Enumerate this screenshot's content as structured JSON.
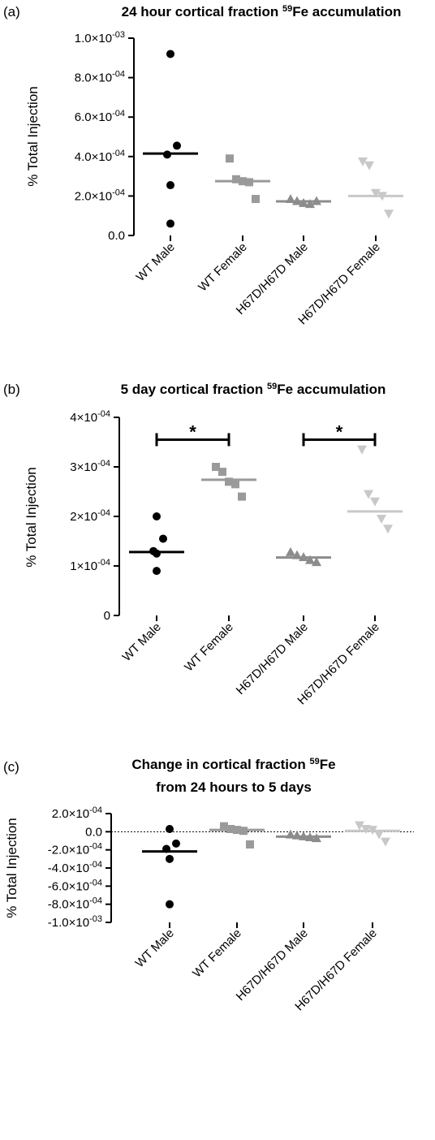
{
  "figure": {
    "panels": [
      {
        "label": "(a)",
        "title_lines": [
          {
            "text": "24 hour cortical fraction ",
            "sup": "59",
            "rest": "Fe accumulation"
          }
        ]
      },
      {
        "label": "(b)",
        "title_lines": [
          {
            "text": "5 day cortical fraction ",
            "sup": "59",
            "rest": "Fe accumulation"
          }
        ]
      },
      {
        "label": "(c)",
        "title_lines": [
          {
            "text": "Change in cortical fraction ",
            "sup": "59",
            "rest": "Fe"
          },
          {
            "text": "from 24 hours to 5 days",
            "sup": "",
            "rest": ""
          }
        ]
      }
    ]
  },
  "colors": {
    "wt_male": "#000000",
    "wt_female": "#9a9a9a",
    "h67d_male": "#8c8c8c",
    "h67d_female": "#c8c8c8"
  },
  "chart_data": [
    {
      "type": "scatter",
      "ylabel": "% Total Injection",
      "ylim": [
        0,
        0.001
      ],
      "yticks": [
        {
          "value": 0.001,
          "label": "1.0×10",
          "exp": "-03"
        },
        {
          "value": 0.0008,
          "label": "8.0×10",
          "exp": "-04"
        },
        {
          "value": 0.0006,
          "label": "6.0×10",
          "exp": "-04"
        },
        {
          "value": 0.0004,
          "label": "4.0×10",
          "exp": "-04"
        },
        {
          "value": 0.0002,
          "label": "2.0×10",
          "exp": "-04"
        },
        {
          "value": 0,
          "label": "0.0",
          "exp": ""
        }
      ],
      "categories": [
        "WT Male",
        "WT Female",
        "H67D/H67D Male",
        "H67D/H67D Female"
      ],
      "series": [
        {
          "marker": "circle",
          "color": "#000000",
          "points": [
            0.00092,
            0.000455,
            0.00041,
            0.000255,
            6e-05
          ],
          "mean": 0.000415
        },
        {
          "marker": "square",
          "color": "#9a9a9a",
          "points": [
            0.00039,
            0.000285,
            0.000275,
            0.00027,
            0.000185
          ],
          "mean": 0.000275
        },
        {
          "marker": "triangle-up",
          "color": "#8c8c8c",
          "points": [
            0.000185,
            0.000175,
            0.000165,
            0.00016,
            0.000175
          ],
          "mean": 0.000173
        },
        {
          "marker": "triangle-down",
          "color": "#c8c8c8",
          "points": [
            0.000375,
            0.000355,
            0.000215,
            0.0002,
            0.00011
          ],
          "mean": 0.0002
        }
      ],
      "significance": []
    },
    {
      "type": "scatter",
      "ylabel": "% Total Injection",
      "ylim": [
        0,
        0.0004
      ],
      "yticks": [
        {
          "value": 0.0004,
          "label": "4×10",
          "exp": "-04"
        },
        {
          "value": 0.0003,
          "label": "3×10",
          "exp": "-04"
        },
        {
          "value": 0.0002,
          "label": "2×10",
          "exp": "-04"
        },
        {
          "value": 0.0001,
          "label": "1×10",
          "exp": "-04"
        },
        {
          "value": 0,
          "label": "0",
          "exp": ""
        }
      ],
      "categories": [
        "WT Male",
        "WT Female",
        "H67D/H67D Male",
        "H67D/H67D Female"
      ],
      "series": [
        {
          "marker": "circle",
          "color": "#000000",
          "points": [
            0.0002,
            0.000155,
            0.00013,
            0.000125,
            9e-05
          ],
          "mean": 0.000128
        },
        {
          "marker": "square",
          "color": "#9a9a9a",
          "points": [
            0.0003,
            0.00029,
            0.00027,
            0.000265,
            0.00024
          ],
          "mean": 0.000274
        },
        {
          "marker": "triangle-up",
          "color": "#8c8c8c",
          "points": [
            0.000128,
            0.000122,
            0.000118,
            0.000112,
            0.000108
          ],
          "mean": 0.000117
        },
        {
          "marker": "triangle-down",
          "color": "#c8c8c8",
          "points": [
            0.000335,
            0.000245,
            0.00023,
            0.000195,
            0.000175
          ],
          "mean": 0.00021
        }
      ],
      "significance": [
        {
          "from": 0,
          "to": 1,
          "y": 0.000355,
          "label": "*"
        },
        {
          "from": 2,
          "to": 3,
          "y": 0.000355,
          "label": "*"
        }
      ]
    },
    {
      "type": "scatter",
      "ylabel": "% Total Injection",
      "ylim": [
        -0.001,
        0.0002
      ],
      "yticks": [
        {
          "value": 0.0002,
          "label": "2.0×10",
          "exp": "-04"
        },
        {
          "value": 0,
          "label": "0.0",
          "exp": ""
        },
        {
          "value": -0.0002,
          "label": "-2.0×10",
          "exp": "-04"
        },
        {
          "value": -0.0004,
          "label": "-4.0×10",
          "exp": "-04"
        },
        {
          "value": -0.0006,
          "label": "-6.0×10",
          "exp": "-04"
        },
        {
          "value": -0.0008,
          "label": "-8.0×10",
          "exp": "-04"
        },
        {
          "value": -0.001,
          "label": "-1.0×10",
          "exp": "-03"
        }
      ],
      "categories": [
        "WT Male",
        "WT Female",
        "H67D/H67D Male",
        "H67D/H67D Female"
      ],
      "zero_line": true,
      "series": [
        {
          "marker": "circle",
          "color": "#000000",
          "points": [
            3e-05,
            -0.00013,
            -0.00019,
            -0.0003,
            -0.0008
          ],
          "mean": -0.000218
        },
        {
          "marker": "square",
          "color": "#9a9a9a",
          "points": [
            6e-05,
            3e-05,
            2e-05,
            1e-05,
            -0.00014
          ],
          "mean": 2e-05
        },
        {
          "marker": "triangle-up",
          "color": "#8c8c8c",
          "points": [
            -3e-05,
            -4e-05,
            -5e-05,
            -6e-05,
            -7e-05
          ],
          "mean": -5.4e-05
        },
        {
          "marker": "triangle-down",
          "color": "#c8c8c8",
          "points": [
            7e-05,
            3e-05,
            2e-05,
            -3e-05,
            -0.00011
          ],
          "mean": 1e-05
        }
      ],
      "significance": []
    }
  ]
}
